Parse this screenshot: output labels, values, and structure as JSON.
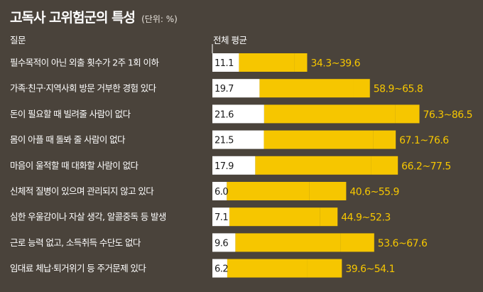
{
  "title": "고독사 고위험군의 특성",
  "unit": "(단위: %)",
  "colors": {
    "background": "#4a433b",
    "average_bar": "#ffffff",
    "range_bar": "#f6c600",
    "range_text": "#f6c600"
  },
  "chart_data": {
    "type": "bar",
    "header_question": "질문",
    "header_average": "전체 평균",
    "categories": [
      "필수목적이 아닌 외출 횟수가 2주 1회 이하",
      "가족·친구·지역사회 방문 거부한 경험 있다",
      "돈이 필요할 때 빌려줄 사람이 없다",
      "몸이 아플 때 돌봐 줄 사람이 없다",
      "마음이 울적할 때 대화할 사람이 없다",
      "신체적 질병이 있으며 관리되지 않고 있다",
      "심한 우울감이나 자살 생각, 알콜중독 등 발생",
      "근로 능력 없고, 소득취득 수단도 없다",
      "임대료 체납·퇴거위기 등 주거문제 있다"
    ],
    "series": [
      {
        "name": "전체 평균",
        "values": [
          11.1,
          19.7,
          21.6,
          21.5,
          17.9,
          6.0,
          7.1,
          9.6,
          6.2
        ],
        "labels": [
          "11.1",
          "19.7",
          "21.6",
          "21.5",
          "17.9",
          "6.0",
          "7.1",
          "9.6",
          "6.2"
        ]
      },
      {
        "range_low": [
          34.3,
          58.9,
          76.3,
          67.1,
          66.2,
          40.6,
          44.9,
          53.6,
          39.6
        ],
        "range_high": [
          39.6,
          65.8,
          86.5,
          76.6,
          77.5,
          55.9,
          52.3,
          67.6,
          54.1
        ],
        "labels": [
          "34.3~39.6",
          "58.9~65.8",
          "76.3~86.5",
          "67.1~76.6",
          "66.2~77.5",
          "40.6~55.9",
          "44.9~52.3",
          "53.6~67.6",
          "39.6~54.1"
        ]
      }
    ]
  }
}
